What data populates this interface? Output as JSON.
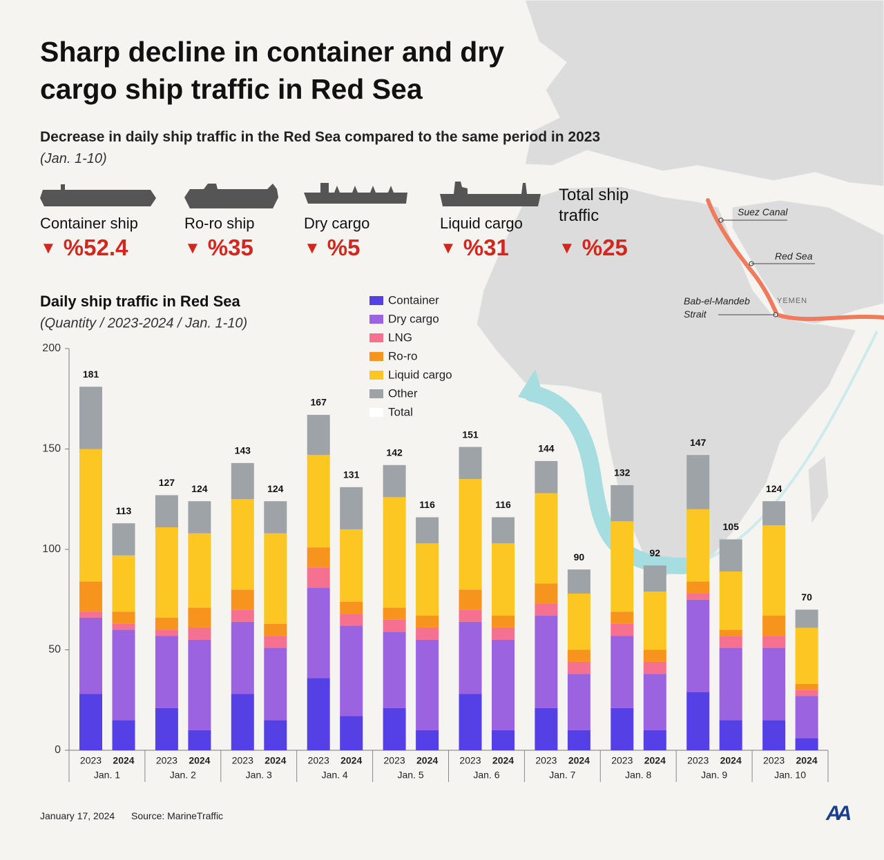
{
  "header": {
    "title": "Sharp decline in container and dry cargo ship traffic in Red Sea",
    "subtitle": "Decrease in daily ship traffic in the Red Sea compared to the same period in 2023",
    "period": "(Jan. 1-10)"
  },
  "stats": [
    {
      "label": "Container ship",
      "change": "%52.4"
    },
    {
      "label": "Ro-ro ship",
      "change": "%35"
    },
    {
      "label": "Dry cargo",
      "change": "%5"
    },
    {
      "label": "Liquid cargo",
      "change": "%31"
    },
    {
      "label": "Total ship traffic",
      "change": "%25"
    }
  ],
  "map": {
    "suez": "Suez Canal",
    "red_sea": "Red Sea",
    "yemen": "YEMEN",
    "strait": [
      "Bab-el-Mandeb",
      "Strait"
    ]
  },
  "chart_data": {
    "type": "stacked_bar",
    "title": "Daily ship traffic in Red Sea",
    "subtitle": "(Quantity / 2023-2024 / Jan. 1-10)",
    "categories": [
      "2023",
      "2024",
      "2023",
      "2024",
      "2023",
      "2024",
      "2023",
      "2024",
      "2023",
      "2024",
      "2023",
      "2024",
      "2023",
      "2024",
      "2023",
      "2024",
      "2023",
      "2024",
      "2023",
      "2024"
    ],
    "groups": [
      "Jan. 1",
      "Jan. 2",
      "Jan. 3",
      "Jan. 4",
      "Jan. 5",
      "Jan. 6",
      "Jan. 7",
      "Jan. 8",
      "Jan. 9",
      "Jan. 10"
    ],
    "series": [
      {
        "name": "Container",
        "color": "#5540e6",
        "values": [
          28,
          15,
          21,
          10,
          28,
          15,
          36,
          17,
          21,
          10,
          28,
          10,
          21,
          10,
          21,
          10,
          29,
          15,
          15,
          6
        ]
      },
      {
        "name": "Dry cargo",
        "color": "#9b63e0",
        "values": [
          38,
          45,
          36,
          45,
          36,
          36,
          45,
          45,
          38,
          45,
          36,
          45,
          46,
          28,
          36,
          28,
          46,
          36,
          36,
          21
        ]
      },
      {
        "name": "LNG",
        "color": "#f5718f",
        "values": [
          3,
          3,
          3,
          6,
          6,
          6,
          10,
          6,
          6,
          6,
          6,
          6,
          6,
          6,
          6,
          6,
          3,
          6,
          6,
          3
        ]
      },
      {
        "name": "Ro-ro",
        "color": "#f7941d",
        "values": [
          15,
          6,
          6,
          10,
          10,
          6,
          10,
          6,
          6,
          6,
          10,
          6,
          10,
          6,
          6,
          6,
          6,
          3,
          10,
          3
        ]
      },
      {
        "name": "Liquid cargo",
        "color": "#fcc623",
        "values": [
          66,
          28,
          45,
          37,
          45,
          45,
          46,
          36,
          55,
          36,
          55,
          36,
          45,
          28,
          45,
          29,
          36,
          29,
          45,
          28
        ]
      },
      {
        "name": "Other",
        "color": "#9ea3a8",
        "values": [
          31,
          16,
          16,
          16,
          18,
          16,
          20,
          21,
          16,
          13,
          16,
          13,
          16,
          12,
          18,
          13,
          27,
          16,
          12,
          9
        ]
      }
    ],
    "totals": {
      "name": "Total",
      "color": "#ffffff",
      "values": [
        181,
        113,
        127,
        124,
        143,
        124,
        167,
        131,
        142,
        116,
        151,
        116,
        144,
        90,
        132,
        92,
        147,
        105,
        124,
        70
      ]
    },
    "ylim": [
      0,
      200
    ],
    "yticks": [
      0,
      50,
      100,
      150,
      200
    ],
    "grid": false
  },
  "footer": {
    "date": "January 17, 2024",
    "source": "Source: MarineTraffic",
    "logo": "AA"
  }
}
